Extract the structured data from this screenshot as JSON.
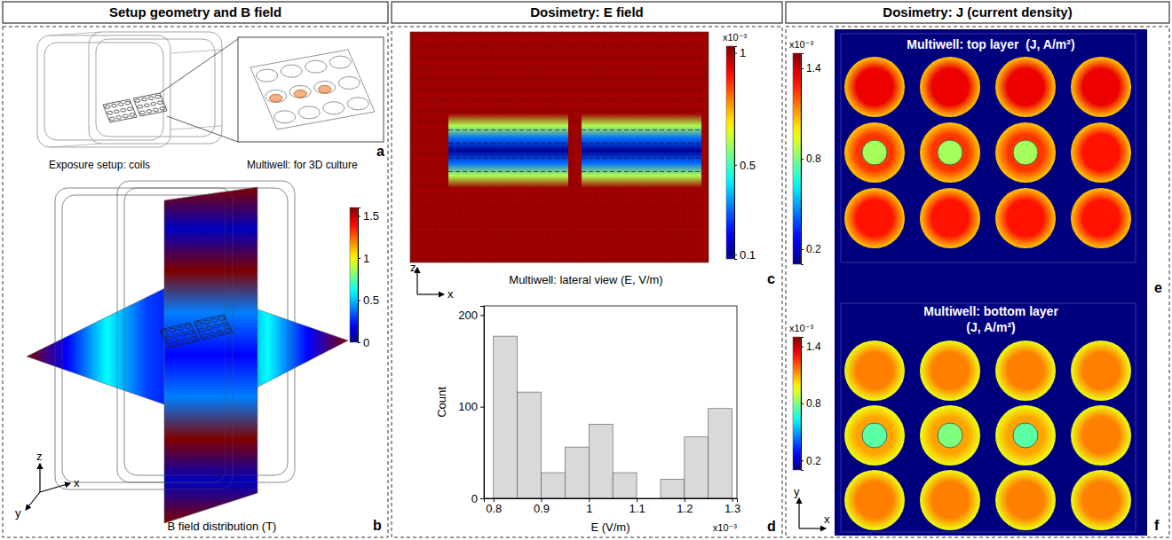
{
  "figure": {
    "headers": [
      "Setup geometry and B field",
      "Dosimetry: E field",
      "Dosimetry: J (current density)"
    ],
    "panel_a": {
      "letter": "a",
      "captions": [
        "Exposure setup: coils",
        "Multiwell: for 3D culture"
      ]
    },
    "panel_b": {
      "letter": "b",
      "caption": "B field distribution (T)",
      "axes": [
        "z",
        "x",
        "y"
      ],
      "colorbar": {
        "range": [
          0,
          1.6
        ],
        "ticks": [
          0,
          0.5,
          1,
          1.5
        ]
      },
      "horizontal_plane": [
        1.6,
        0.2,
        0.6,
        0.3,
        0.2,
        0.3,
        0.6,
        0.2,
        1.6
      ],
      "vertical_plane": [
        1.6,
        0.1,
        1.6,
        0.4,
        0.2,
        0.4,
        1.6,
        0.1,
        1.6
      ]
    },
    "panel_c": {
      "letter": "c",
      "caption": "Multiwell: lateral view (E, V/m)",
      "axes": [
        "z",
        "x"
      ],
      "colorbar": {
        "range": [
          0.08,
          1.03
        ],
        "ticks": [
          0.1,
          0.5,
          1
        ],
        "multiplier": "x10⁻³"
      },
      "background": 1,
      "well_profile": [
        1,
        0.6,
        0.3,
        0.1,
        0.3,
        0.6,
        1
      ]
    },
    "panel_e": {
      "letter": "e",
      "title": "Multiwell: top layer  (J, A/m²)",
      "colorbar": {
        "range": [
          0.1,
          1.5
        ],
        "ticks": [
          0.2,
          0.8,
          1.4
        ],
        "multiplier": "x10⁻³"
      },
      "background": 0.1,
      "wells": [
        [
          1.35,
          1.35,
          1.35,
          1.35
        ],
        [
          1.25,
          1.25,
          1.25,
          1.3
        ],
        [
          1.3,
          1.3,
          1.3,
          1.3
        ]
      ],
      "well_edge": 1.05,
      "gels": [
        0.85,
        0.85,
        0.85
      ]
    },
    "panel_f": {
      "letter": "f",
      "title": [
        "Multiwell: bottom layer",
        "(J, A/m²)"
      ],
      "axes": [
        "y",
        "x"
      ],
      "colorbar": {
        "range": [
          0.1,
          1.5
        ],
        "ticks": [
          0.2,
          0.8,
          1.4
        ],
        "multiplier": "x10⁻³"
      },
      "background": 0.1,
      "wells": [
        [
          1.15,
          1.15,
          1.15,
          1.15
        ],
        [
          1.1,
          1.1,
          1.1,
          1.15
        ],
        [
          1.15,
          1.15,
          1.15,
          1.15
        ]
      ],
      "well_edge": 0.95,
      "gels": [
        0.75,
        0.8,
        0.75
      ]
    }
  },
  "chart_data": {
    "type": "histogram",
    "panel_label": "d",
    "x_label": "E (V/m)",
    "y_label": "Count",
    "x_multiplier": "x10⁻³",
    "bins": [
      0.8,
      0.85,
      0.9,
      0.95,
      1,
      1.05,
      1.1,
      1.15,
      1.2,
      1.25,
      1.3
    ],
    "counts": [
      177,
      116,
      28,
      56,
      81,
      28,
      0,
      21,
      67,
      98
    ],
    "color": "#d9d9d9",
    "xlim": [
      0.78,
      1.31
    ],
    "xticks": [
      0.8,
      0.9,
      1,
      1.1,
      1.2,
      1.3
    ],
    "ylim": [
      0,
      210
    ],
    "yticks": [
      0,
      100,
      200
    ]
  }
}
